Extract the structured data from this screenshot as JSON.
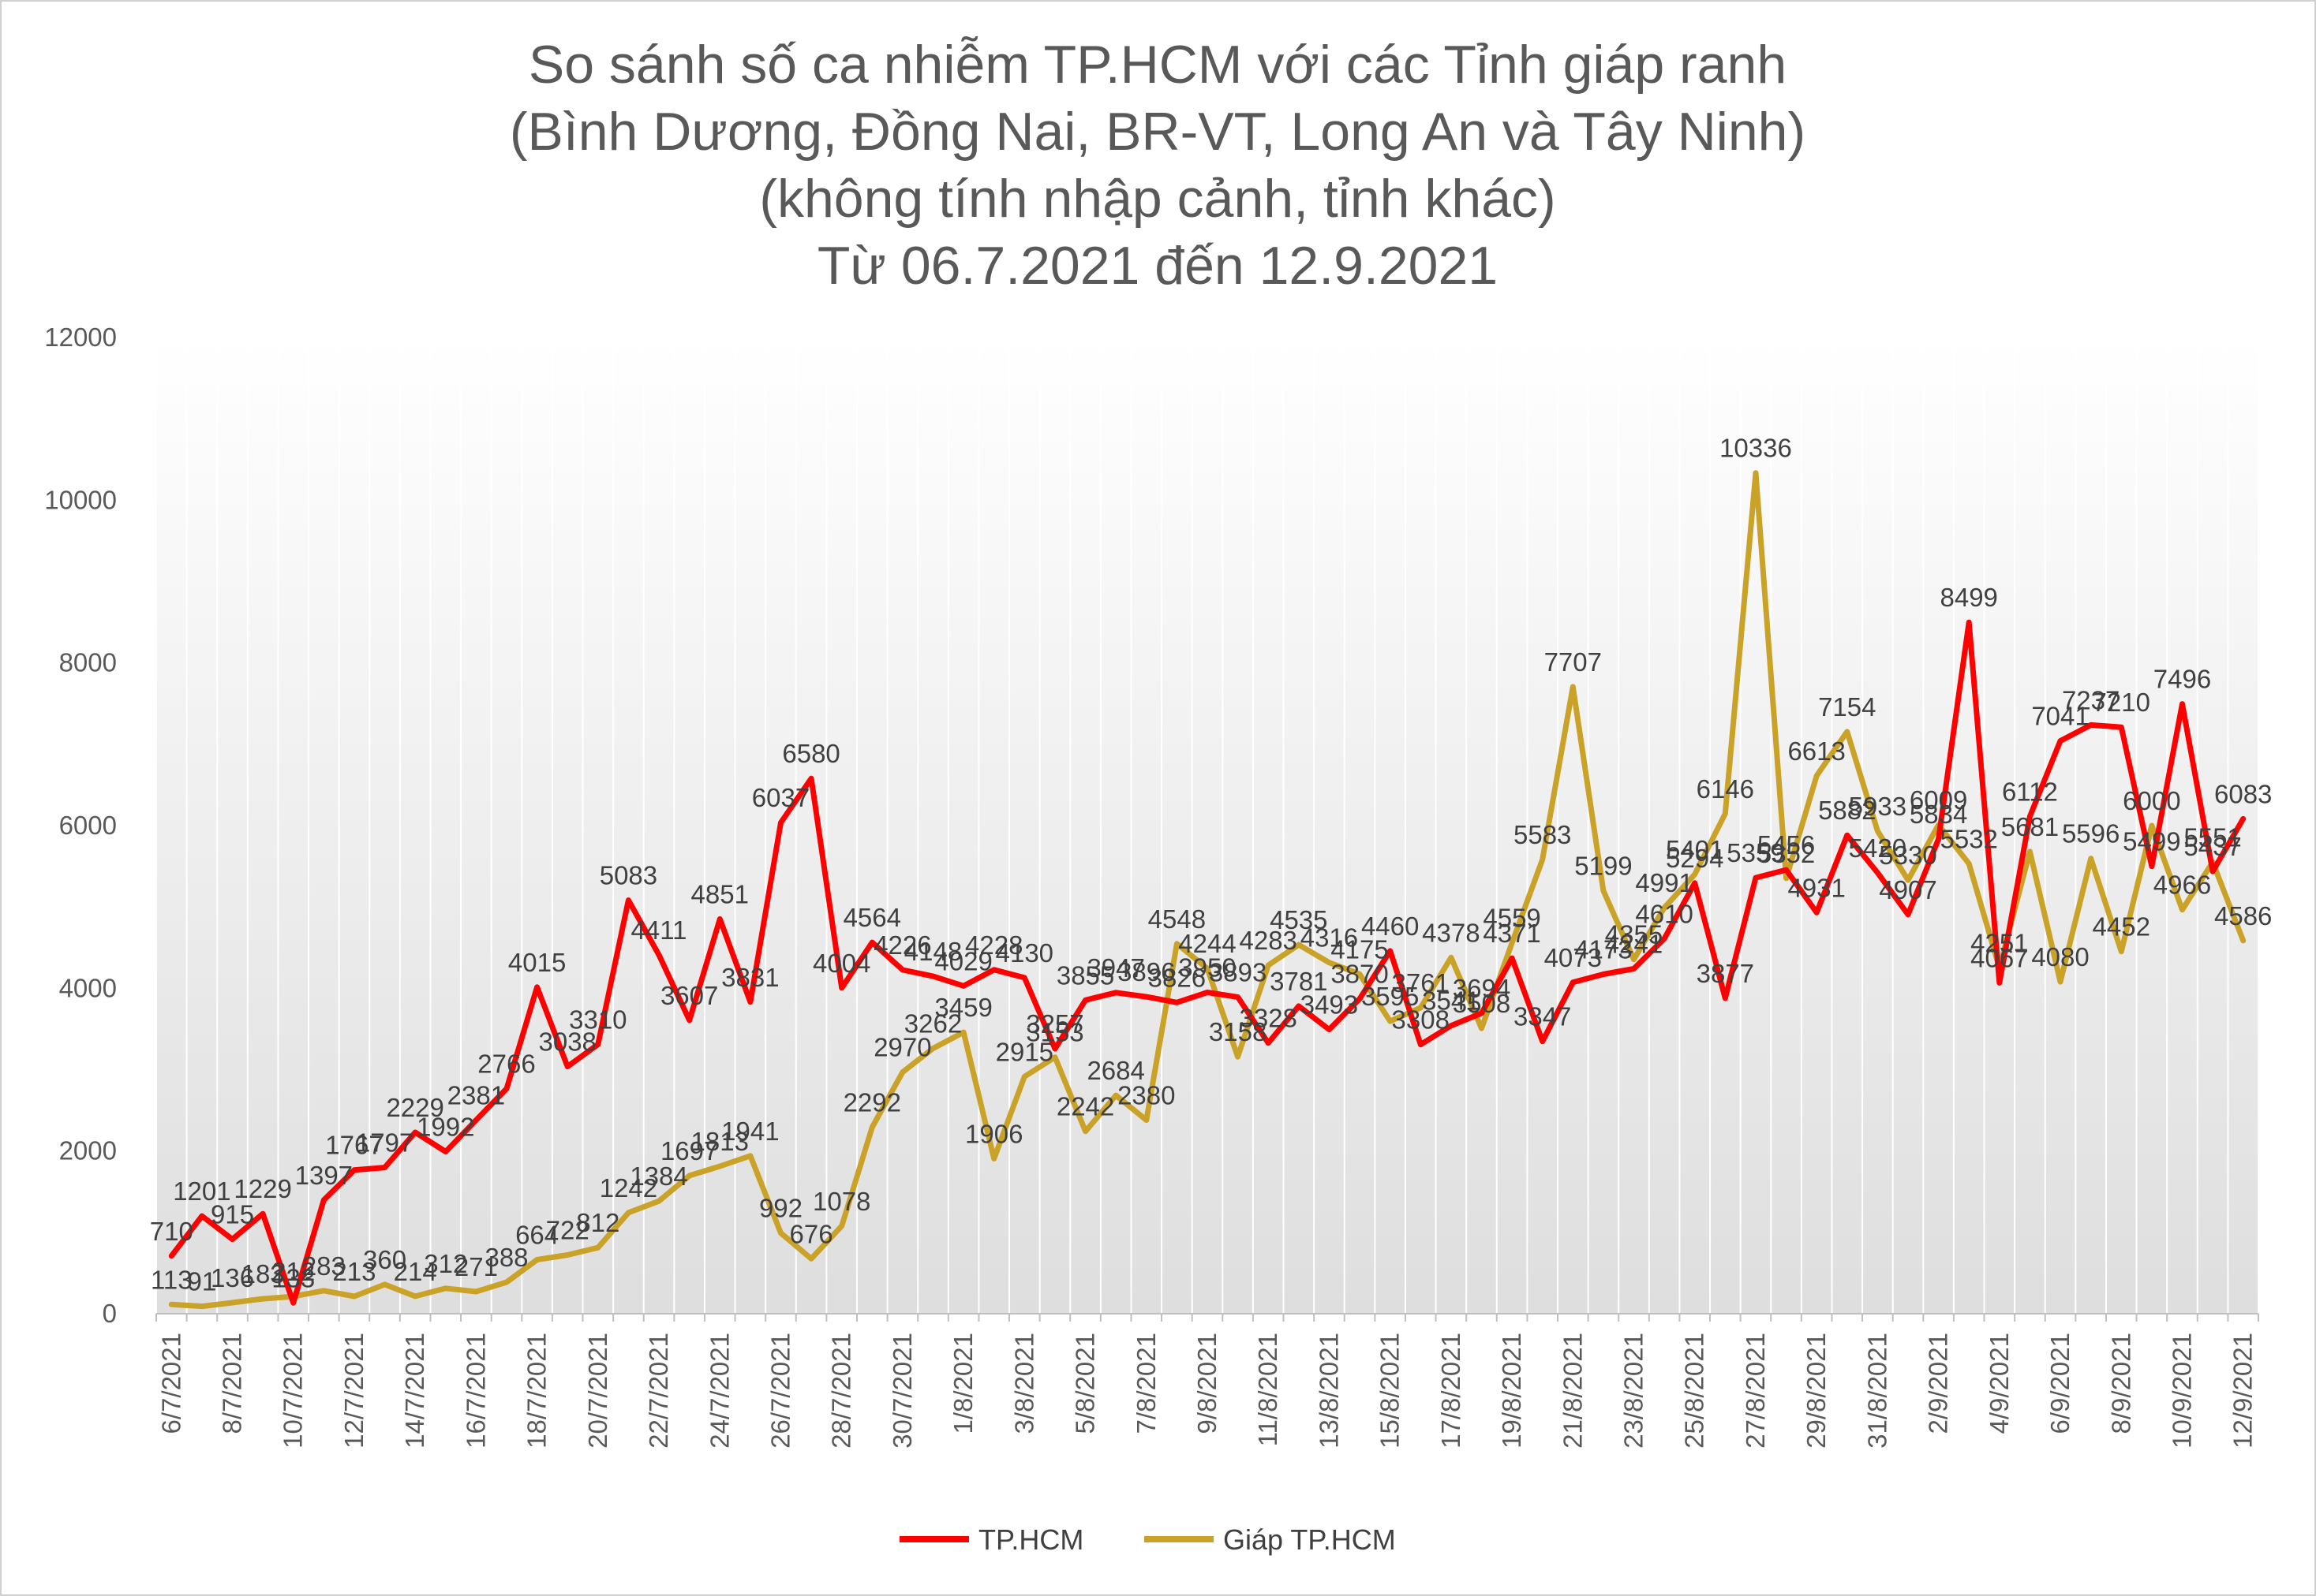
{
  "chart_data": {
    "type": "line",
    "title_lines": [
      "So sánh số ca nhiễm TP.HCM với các Tỉnh giáp ranh",
      "(Bình Dương, Đồng Nai, BR-VT, Long An và Tây Ninh)",
      "(không tính nhập cảnh, tỉnh khác)",
      "Từ 06.7.2021 đến 12.9.2021"
    ],
    "ylim": [
      0,
      12000
    ],
    "yticks": [
      "0",
      "2000",
      "4000",
      "6000",
      "8000",
      "10000",
      "12000"
    ],
    "ytick_values": [
      0,
      2000,
      4000,
      6000,
      8000,
      10000,
      12000
    ],
    "categories": [
      "6/7/2021",
      "7/7/2021",
      "8/7/2021",
      "9/7/2021",
      "10/7/2021",
      "11/7/2021",
      "12/7/2021",
      "13/7/2021",
      "14/7/2021",
      "15/7/2021",
      "16/7/2021",
      "17/7/2021",
      "18/7/2021",
      "19/7/2021",
      "20/7/2021",
      "21/7/2021",
      "22/7/2021",
      "23/7/2021",
      "24/7/2021",
      "25/7/2021",
      "26/7/2021",
      "27/7/2021",
      "28/7/2021",
      "29/7/2021",
      "30/7/2021",
      "31/7/2021",
      "1/8/2021",
      "2/8/2021",
      "3/8/2021",
      "4/8/2021",
      "5/8/2021",
      "6/8/2021",
      "7/8/2021",
      "8/8/2021",
      "9/8/2021",
      "10/8/2021",
      "11/8/2021",
      "12/8/2021",
      "13/8/2021",
      "14/8/2021",
      "15/8/2021",
      "16/8/2021",
      "17/8/2021",
      "18/8/2021",
      "19/8/2021",
      "20/8/2021",
      "21/8/2021",
      "22/8/2021",
      "23/8/2021",
      "24/8/2021",
      "25/8/2021",
      "26/8/2021",
      "27/8/2021",
      "28/8/2021",
      "29/8/2021",
      "30/8/2021",
      "31/8/2021",
      "1/9/2021",
      "2/9/2021",
      "3/9/2021",
      "4/9/2021",
      "5/9/2021",
      "6/9/2021",
      "7/9/2021",
      "8/9/2021",
      "9/9/2021",
      "10/9/2021",
      "11/9/2021",
      "12/9/2021"
    ],
    "xtick_labels": [
      "6/7/2021",
      "8/7/2021",
      "10/7/2021",
      "12/7/2021",
      "14/7/2021",
      "16/7/2021",
      "18/7/2021",
      "20/7/2021",
      "22/7/2021",
      "24/7/2021",
      "26/7/2021",
      "28/7/2021",
      "30/7/2021",
      "1/8/2021",
      "3/8/2021",
      "5/8/2021",
      "7/8/2021",
      "9/8/2021",
      "11/8/2021",
      "13/8/2021",
      "15/8/2021",
      "17/8/2021",
      "19/8/2021",
      "21/8/2021",
      "23/8/2021",
      "25/8/2021",
      "27/8/2021",
      "29/8/2021",
      "31/8/2021",
      "2/9/2021",
      "4/9/2021",
      "6/9/2021",
      "8/9/2021",
      "10/9/2021",
      "12/9/2021"
    ],
    "series": [
      {
        "name": "TP.HCM",
        "color": "#ff0000",
        "values": [
          710,
          1201,
          915,
          1229,
          133,
          1397,
          1767,
          1797,
          2229,
          1992,
          2381,
          2766,
          4015,
          3038,
          3310,
          5083,
          4411,
          3607,
          4851,
          3831,
          6037,
          6580,
          4004,
          4564,
          4226,
          4148,
          4029,
          4228,
          4130,
          3257,
          3855,
          3947,
          3896,
          3826,
          3950,
          3893,
          3328,
          3781,
          3493,
          3870,
          4460,
          3308,
          3541,
          3694,
          4371,
          3347,
          4073,
          4173,
          4241,
          4610,
          5294,
          3877,
          5359,
          5456,
          4931,
          5882,
          5420,
          4907,
          5834,
          8499,
          4067,
          6112,
          7041,
          7237,
          7210,
          5499,
          7496,
          5437,
          6083
        ]
      },
      {
        "name": "Giáp TP.HCM",
        "color": "#c9a227",
        "values": [
          113,
          91,
          136,
          183,
          212,
          283,
          213,
          360,
          214,
          312,
          271,
          388,
          664,
          722,
          812,
          1242,
          1384,
          1697,
          1813,
          1941,
          992,
          676,
          1078,
          2292,
          2970,
          3262,
          3459,
          1906,
          2915,
          3153,
          2242,
          2684,
          2380,
          4548,
          4244,
          3158,
          4283,
          4535,
          4316,
          4175,
          3595,
          3761,
          4378,
          3508,
          4559,
          5583,
          7707,
          5199,
          4355,
          4991,
          5401,
          6146,
          10336,
          5352,
          6613,
          7154,
          5933,
          5330,
          6009,
          5532,
          4251,
          5681,
          4080,
          5596,
          4452,
          6000,
          4966,
          5551,
          4586
        ]
      }
    ],
    "legend": {
      "position": "bottom",
      "items": [
        "TP.HCM",
        "Giáp TP.HCM"
      ]
    },
    "grid": "vertical-category-lines"
  }
}
